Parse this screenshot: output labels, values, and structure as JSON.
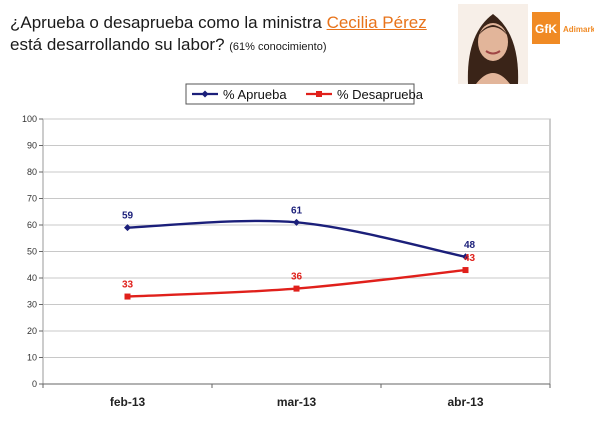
{
  "header": {
    "question_part1": "¿Aprueba o desaprueba como la ministra ",
    "minister_name": "Cecilia Pérez",
    "question_part2": "está desarrollando su labor?",
    "awareness_note": "(61% conocimiento)"
  },
  "logo": {
    "brand": "GfK",
    "sub_brand": "Adimark",
    "color": "#f08a24"
  },
  "chart_data": {
    "type": "line",
    "categories": [
      "feb-13",
      "mar-13",
      "abr-13"
    ],
    "series": [
      {
        "name": "% Aprueba",
        "values": [
          59,
          61,
          48
        ],
        "color": "#1b1f7a"
      },
      {
        "name": "% Desaprueba",
        "values": [
          33,
          36,
          43
        ],
        "color": "#e0201b"
      }
    ],
    "ylim": [
      0,
      100
    ],
    "yticks": [
      0,
      10,
      20,
      30,
      40,
      50,
      60,
      70,
      80,
      90,
      100
    ],
    "grid": true,
    "legend": "top-center",
    "title": "",
    "xlabel": "",
    "ylabel": ""
  }
}
